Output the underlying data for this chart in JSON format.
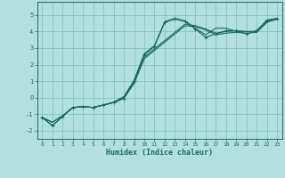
{
  "xlabel": "Humidex (Indice chaleur)",
  "background_color": "#b2e0e0",
  "grid_color": "#7abfbf",
  "line_color": "#1a6b5a",
  "xlim": [
    -0.5,
    23.5
  ],
  "ylim": [
    -2.5,
    5.8
  ],
  "yticks": [
    -2,
    -1,
    0,
    1,
    2,
    3,
    4,
    5
  ],
  "xticks": [
    0,
    1,
    2,
    3,
    4,
    5,
    6,
    7,
    8,
    9,
    10,
    11,
    12,
    13,
    14,
    15,
    16,
    17,
    18,
    19,
    20,
    21,
    22,
    23
  ],
  "line1_x": [
    0,
    1,
    2,
    3,
    4,
    5,
    6,
    7,
    8,
    9,
    10,
    11,
    12,
    13,
    14,
    15,
    16,
    17,
    18,
    19,
    20,
    21,
    22,
    23
  ],
  "line1_y": [
    -1.2,
    -1.7,
    -1.15,
    -0.6,
    -0.55,
    -0.6,
    -0.45,
    -0.3,
    -0.05,
    1.0,
    2.6,
    3.1,
    4.55,
    4.75,
    4.6,
    4.15,
    3.65,
    3.85,
    4.05,
    4.05,
    3.85,
    4.05,
    4.65,
    4.75
  ],
  "line2_x": [
    0,
    1,
    2,
    3,
    4,
    5,
    6,
    7,
    8,
    9,
    10,
    11,
    12,
    13,
    14,
    15,
    16,
    17,
    18,
    19,
    20,
    21,
    22,
    23
  ],
  "line2_y": [
    -1.2,
    -1.7,
    -1.15,
    -0.6,
    -0.55,
    -0.6,
    -0.45,
    -0.3,
    0.05,
    1.05,
    2.65,
    3.15,
    4.6,
    4.8,
    4.65,
    4.2,
    3.8,
    4.2,
    4.2,
    4.0,
    4.0,
    4.0,
    4.7,
    4.8
  ],
  "line3_x": [
    0,
    1,
    2,
    3,
    4,
    5,
    6,
    7,
    8,
    9,
    10,
    11,
    12,
    13,
    14,
    15,
    16,
    17,
    18,
    19,
    20,
    21,
    22,
    23
  ],
  "line3_y": [
    -1.2,
    -1.5,
    -1.1,
    -0.6,
    -0.55,
    -0.6,
    -0.45,
    -0.3,
    -0.05,
    0.85,
    2.35,
    2.85,
    3.35,
    3.85,
    4.35,
    4.3,
    4.1,
    3.8,
    3.9,
    3.95,
    3.9,
    3.95,
    4.55,
    4.75
  ],
  "line4_x": [
    0,
    1,
    2,
    3,
    4,
    5,
    6,
    7,
    8,
    9,
    10,
    11,
    12,
    13,
    14,
    15,
    16,
    17,
    18,
    19,
    20,
    21,
    22,
    23
  ],
  "line4_y": [
    -1.2,
    -1.5,
    -1.1,
    -0.6,
    -0.55,
    -0.6,
    -0.45,
    -0.28,
    0.05,
    0.95,
    2.45,
    2.95,
    3.45,
    3.95,
    4.45,
    4.35,
    4.15,
    3.9,
    4.0,
    4.05,
    4.0,
    4.0,
    4.6,
    4.8
  ]
}
